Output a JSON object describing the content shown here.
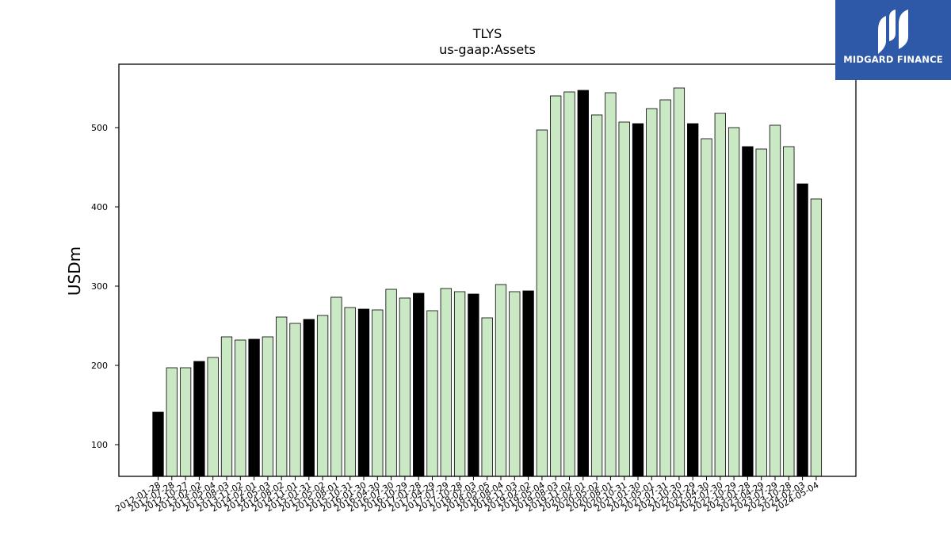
{
  "logo": {
    "text": "MIDGARD FINANCE",
    "color": "#2e58a8"
  },
  "chart_data": {
    "type": "bar",
    "title": "TLYS",
    "subtitle": "us-gaap:Assets",
    "ylabel": "USDm",
    "ylim": [
      60,
      580
    ],
    "yticks": [
      100,
      200,
      300,
      400,
      500
    ],
    "colors": {
      "highlight": "#000000",
      "normal": "#c9e8c3",
      "edge": "#000000"
    },
    "categories": [
      "2012-01-28",
      "2012-07-28",
      "2012-10-27",
      "2013-02-02",
      "2013-05-04",
      "2013-08-03",
      "2013-11-02",
      "2014-02-01",
      "2014-05-03",
      "2014-08-02",
      "2014-11-01",
      "2015-01-31",
      "2015-05-02",
      "2015-08-01",
      "2015-10-31",
      "2016-01-30",
      "2016-04-30",
      "2016-07-30",
      "2016-10-29",
      "2017-01-28",
      "2017-04-29",
      "2017-07-29",
      "2017-10-28",
      "2018-02-03",
      "2018-05-05",
      "2018-08-04",
      "2018-11-03",
      "2019-02-02",
      "2019-05-04",
      "2019-08-03",
      "2019-11-02",
      "2020-02-01",
      "2020-05-02",
      "2020-08-01",
      "2020-10-31",
      "2021-01-30",
      "2021-05-01",
      "2021-07-31",
      "2021-10-30",
      "2022-01-29",
      "2022-04-30",
      "2022-07-30",
      "2022-10-29",
      "2023-01-28",
      "2023-04-29",
      "2023-07-29",
      "2023-10-28",
      "2024-02-03",
      "2024-05-04"
    ],
    "values": [
      141,
      197,
      197,
      205,
      210,
      236,
      232,
      233,
      236,
      261,
      253,
      258,
      263,
      286,
      273,
      271,
      270,
      296,
      285,
      291,
      269,
      297,
      293,
      290,
      260,
      302,
      293,
      294,
      497,
      540,
      545,
      547,
      516,
      544,
      507,
      505,
      524,
      535,
      550,
      505,
      486,
      518,
      500,
      476,
      473,
      503,
      476,
      429,
      410
    ],
    "highlight": [
      true,
      false,
      false,
      true,
      false,
      false,
      false,
      true,
      false,
      false,
      false,
      true,
      false,
      false,
      false,
      true,
      false,
      false,
      false,
      true,
      false,
      false,
      false,
      true,
      false,
      false,
      false,
      true,
      false,
      false,
      false,
      true,
      false,
      false,
      false,
      true,
      false,
      false,
      false,
      true,
      false,
      false,
      false,
      true,
      false,
      false,
      false,
      true,
      false
    ]
  }
}
